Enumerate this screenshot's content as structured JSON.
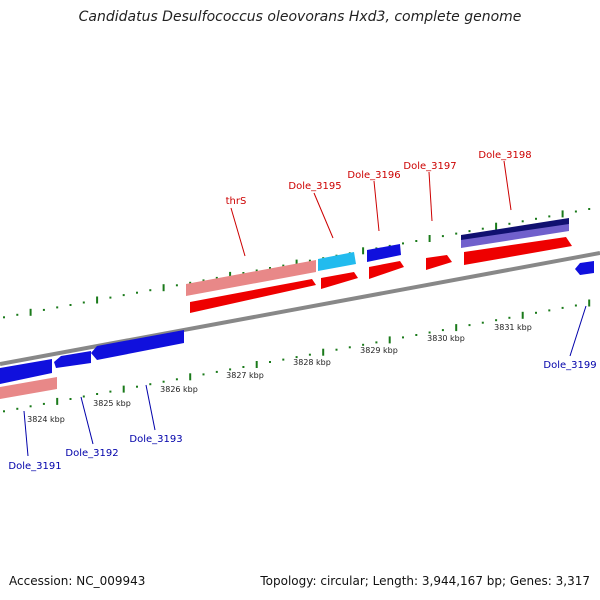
{
  "title": "Candidatus Desulfococcus oleovorans Hxd3, complete genome",
  "footer": {
    "accession": "Accession: NC_009943",
    "summary": "Topology: circular; Length: 3,944,167 bp; Genes: 3,317"
  },
  "colors": {
    "backbone": "#8c8c8c",
    "tick": "#1a7a1a",
    "forward_label": "#cc0000",
    "reverse_label": "#0000aa",
    "gene_red": "#ee0000",
    "gene_pink": "#e88888",
    "gene_blue": "#1010dd",
    "gene_cyan": "#22bbee",
    "gene_navy": "#101070",
    "gene_purple": "#7060cc"
  },
  "kbp_labels": [
    "3824 kbp",
    "3825 kbp",
    "3826 kbp",
    "3827 kbp",
    "3828 kbp",
    "3829 kbp",
    "3830 kbp",
    "3831 kbp"
  ],
  "gene_labels": {
    "thrS": "thrS",
    "Dole_3195": "Dole_3195",
    "Dole_3196": "Dole_3196",
    "Dole_3197": "Dole_3197",
    "Dole_3198": "Dole_3198",
    "Dole_3191": "Dole_3191",
    "Dole_3192": "Dole_3192",
    "Dole_3193": "Dole_3193",
    "Dole_3199": "Dole_3199"
  }
}
